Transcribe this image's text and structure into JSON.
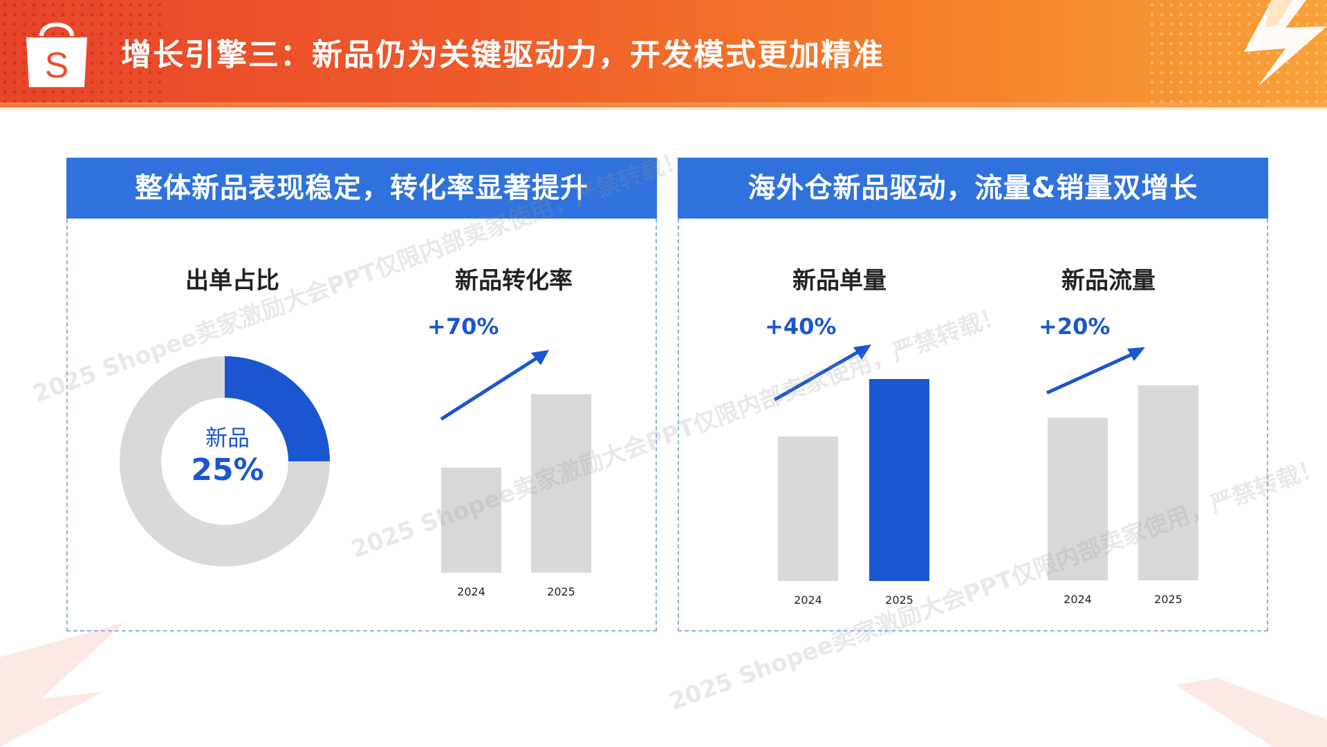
{
  "header": {
    "title": "增长引擎三：新品仍为关键驱动力，开发模式更加精准",
    "logo_letter": "S"
  },
  "left_panel": {
    "heading": "整体新品表现稳定，转化率显著提升",
    "donut": {
      "title": "出单占比",
      "center_label": "新品",
      "center_value": "25%"
    },
    "conversion": {
      "title": "新品转化率",
      "growth": "+70%"
    }
  },
  "right_panel": {
    "heading": "海外仓新品驱动，流量&销量双增长",
    "units": {
      "title": "新品单量",
      "growth": "+40%"
    },
    "traffic": {
      "title": "新品流量",
      "growth": "+20%"
    }
  },
  "watermark_text": "2025 Shopee卖家激励大会PPT仅限内部卖家使用，严禁转载！",
  "colors": {
    "accent": "#1a56cf",
    "bar_gray": "#d9d9d9",
    "header": "#ee5a2a",
    "panel_head": "#2f72dd"
  },
  "chart_data": [
    {
      "type": "pie",
      "title": "出单占比",
      "categories": [
        "新品",
        ""
      ],
      "values": [
        25,
        75
      ]
    },
    {
      "type": "bar",
      "title": "新品转化率",
      "categories": [
        "2024",
        "2025"
      ],
      "values": [
        1.0,
        1.7
      ],
      "annotation": "+70%"
    },
    {
      "type": "bar",
      "title": "新品单量",
      "categories": [
        "2024",
        "2025"
      ],
      "values": [
        1.0,
        1.4
      ],
      "annotation": "+40%"
    },
    {
      "type": "bar",
      "title": "新品流量",
      "categories": [
        "2024",
        "2025"
      ],
      "values": [
        1.0,
        1.2
      ],
      "annotation": "+20%"
    }
  ]
}
